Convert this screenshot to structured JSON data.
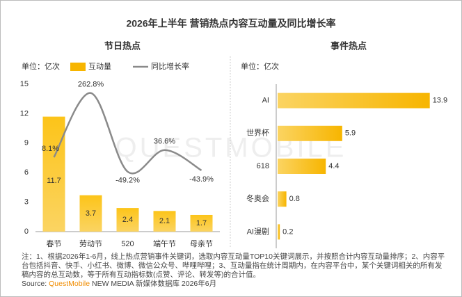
{
  "title": "2026年上半年 营销热点内容互动量及同比增长率",
  "watermark": "QUESTMOBILE",
  "chart_data": [
    {
      "type": "bar",
      "title": "节日热点",
      "unit_label": "单位：亿次",
      "categories": [
        "春节",
        "劳动节",
        "520",
        "端午节",
        "母亲节"
      ],
      "series": [
        {
          "name": "互动量",
          "color": "#f7b500",
          "values": [
            11.7,
            3.7,
            2.4,
            2.1,
            1.7
          ]
        },
        {
          "name": "同比增长率",
          "type": "line",
          "axis": "y2",
          "color": "#8a8a8a",
          "values": [
            8.1,
            262.8,
            -49.2,
            36.6,
            -43.9
          ],
          "value_labels": [
            "8.1%",
            "262.8%",
            "-49.2%",
            "36.6%",
            "-43.9%"
          ]
        }
      ],
      "ylim": [
        0,
        15
      ],
      "yticks": [
        0,
        3,
        6,
        9,
        12,
        15
      ],
      "y2lim": [
        -287,
        298
      ]
    },
    {
      "type": "barh",
      "title": "事件热点",
      "unit_label": "单位：亿次",
      "categories": [
        "AI",
        "世界杯",
        "618",
        "冬奥会",
        "AI漫剧"
      ],
      "values": [
        13.9,
        5.9,
        4.4,
        0.8,
        0.2
      ],
      "color": "#f7b500",
      "xlim": [
        0,
        15
      ]
    }
  ],
  "note": "注：1、根据2026年1-6月，线上热点营销事件关键词，选取内容互动量TOP10关键词展示，并按照合计内容互动量排序；2、内容平台包括抖音、快手、小红书、微博、微信公众号、哔哩哔哩；3、互动量指在统计周期内，在内容平台中，某个关键词相关的所有发稿内容的总互动数，等于所有互动指标数(点赞、评论、转发等)的合计值。",
  "source": {
    "label": "Source: ",
    "brand": "QuestMobile",
    "rest": " NEW MEDIA 新媒体数据库 2026年6月"
  }
}
